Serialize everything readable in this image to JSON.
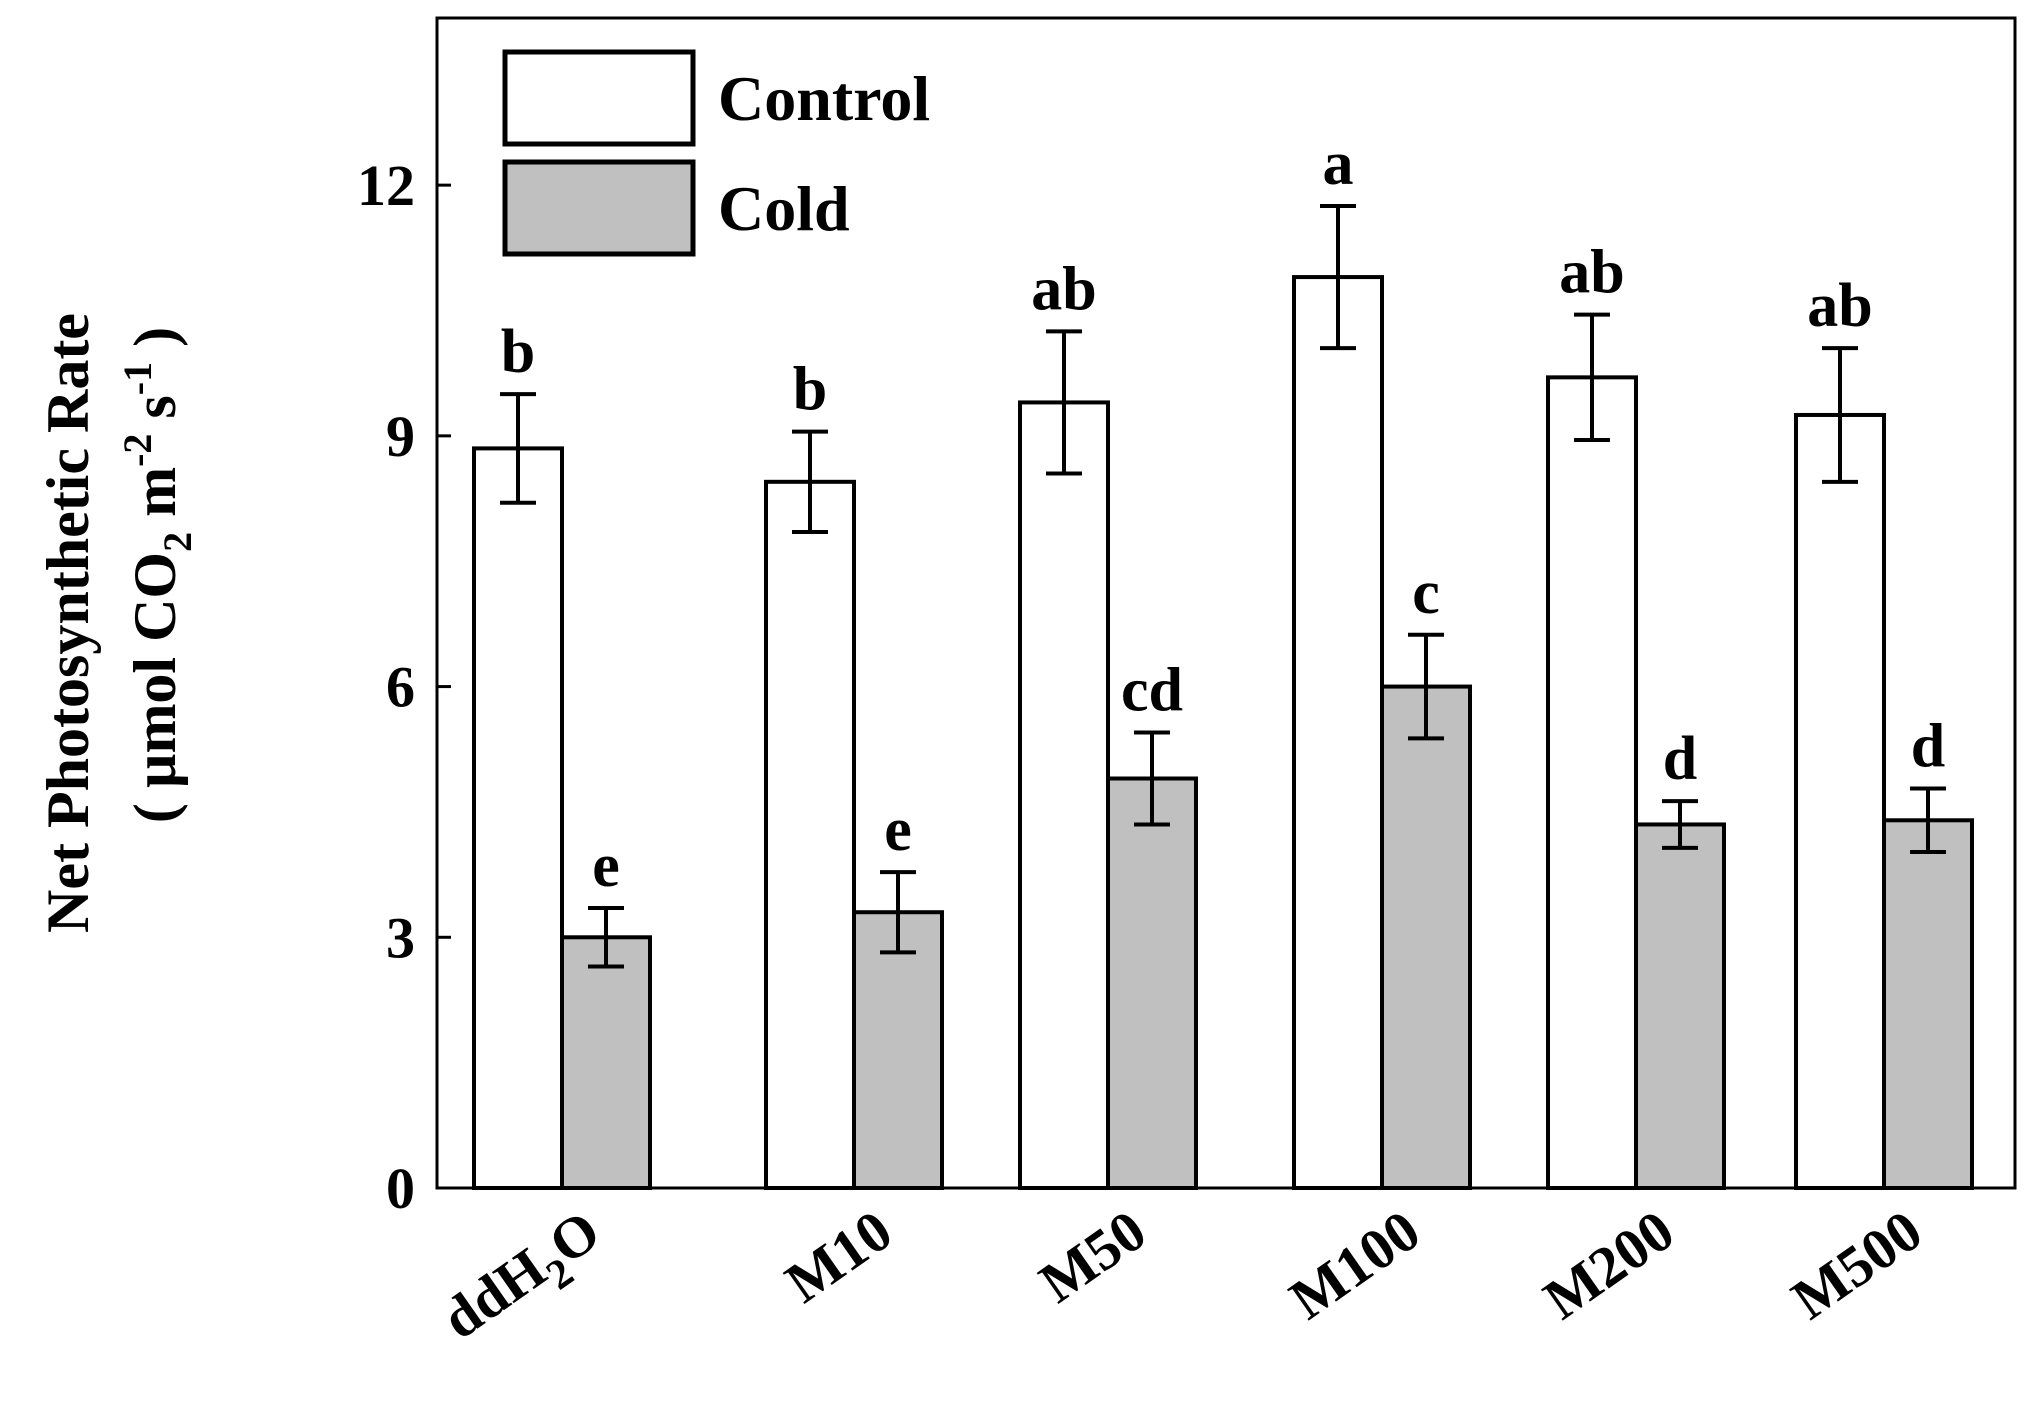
{
  "chart_data": {
    "type": "bar",
    "title": "",
    "xlabel": "",
    "ylabel": {
      "line1": "Net Photosynthetic Rate",
      "line2_prefix": "( µmol CO",
      "line2_sub": "2",
      "line2_mid": " m",
      "line2_sup1": "-2",
      "line2_mid2": " s",
      "line2_sup2": "-1",
      "line2_suffix": " )"
    },
    "ylim": [
      0,
      14
    ],
    "yticks": [
      {
        "value": 0,
        "label": "0"
      },
      {
        "value": 3,
        "label": "3"
      },
      {
        "value": 6,
        "label": "6"
      },
      {
        "value": 9,
        "label": "9"
      },
      {
        "value": 12,
        "label": "12"
      }
    ],
    "categories": [
      {
        "label": "ddH",
        "sub": "2",
        "suffix": "O"
      },
      {
        "label": "M10",
        "sub": "",
        "suffix": ""
      },
      {
        "label": "M50",
        "sub": "",
        "suffix": ""
      },
      {
        "label": "M100",
        "sub": "",
        "suffix": ""
      },
      {
        "label": "M200",
        "sub": "",
        "suffix": ""
      },
      {
        "label": "M500",
        "sub": "",
        "suffix": ""
      }
    ],
    "series": [
      {
        "name": "Control",
        "color": "#ffffff",
        "values": [
          8.85,
          8.45,
          9.4,
          10.9,
          9.7,
          9.25
        ],
        "errors": [
          0.65,
          0.6,
          0.85,
          0.85,
          0.75,
          0.8
        ],
        "letters": [
          "b",
          "b",
          "ab",
          "a",
          "ab",
          "ab"
        ]
      },
      {
        "name": "Cold",
        "color": "#c0c0c0",
        "values": [
          3.0,
          3.3,
          4.9,
          6.0,
          4.35,
          4.4
        ],
        "errors": [
          0.35,
          0.48,
          0.55,
          0.62,
          0.28,
          0.38
        ],
        "letters": [
          "e",
          "e",
          "cd",
          "c",
          "d",
          "d"
        ]
      }
    ],
    "legend_position": "top-left",
    "grid": false
  }
}
